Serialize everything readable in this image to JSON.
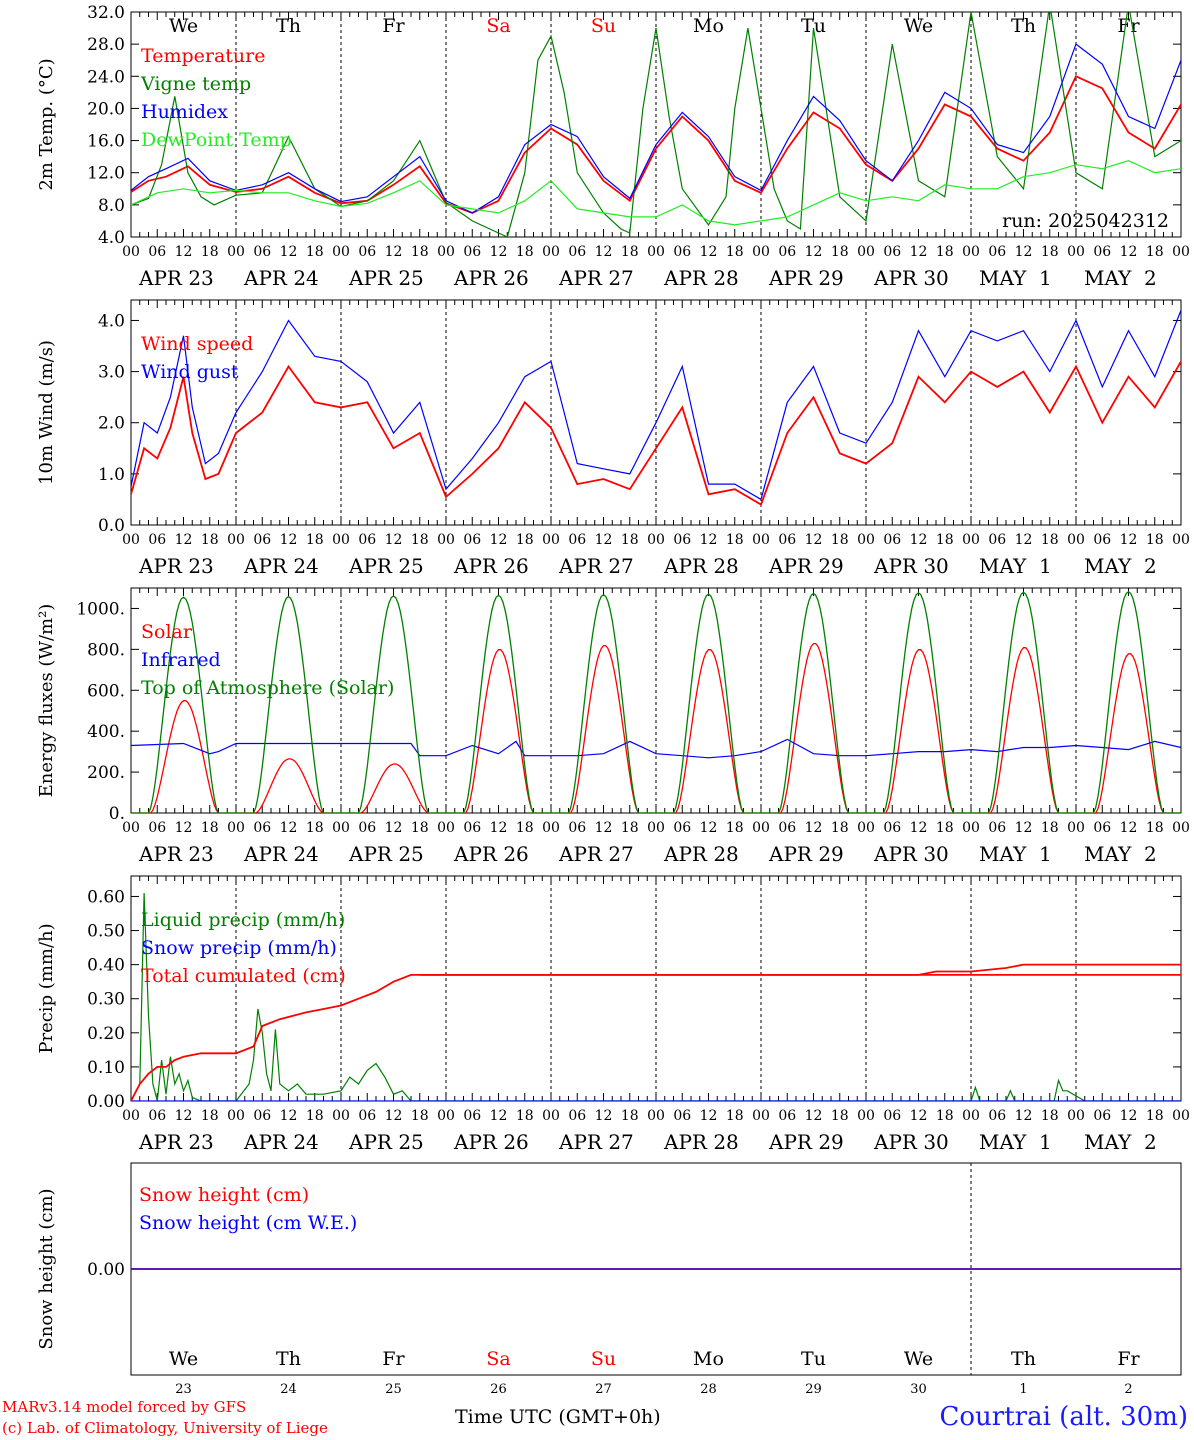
{
  "run_label": "run: 2025042312",
  "dates": [
    "APR 23",
    "APR 24",
    "APR 25",
    "APR 26",
    "APR 27",
    "APR 28",
    "APR 29",
    "APR 30",
    "MAY  1",
    "MAY  2"
  ],
  "weekdays": [
    "We",
    "Th",
    "Fr",
    "Sa",
    "Su",
    "Mo",
    "Tu",
    "We",
    "Th",
    "Fr"
  ],
  "weekend_days": [
    "Sa",
    "Su"
  ],
  "day_numbers": [
    "23",
    "24",
    "25",
    "26",
    "27",
    "28",
    "29",
    "30",
    "1",
    "2"
  ],
  "hour_ticks": [
    "00",
    "06",
    "12",
    "18"
  ],
  "final_hour_tick": "00",
  "footer": {
    "model": "MARv3.14 model forced by GFS",
    "lab": "(c) Lab. of Climatology, University of Liege",
    "time_label": "Time UTC (GMT+0h)",
    "location": "Courtrai (alt. 30m)"
  },
  "colors": {
    "red": "#ff0000",
    "green": "#008000",
    "blue": "#0000ff",
    "light_green": "#22ee22",
    "grid": "#000000"
  },
  "chart_data": [
    {
      "type": "line",
      "ylabel": "2m Temp. (°C)",
      "ylim": [
        4,
        32
      ],
      "yticks": [
        "4.0",
        "8.0",
        "12.0",
        "16.0",
        "20.0",
        "24.0",
        "28.0",
        "32.0"
      ],
      "x_unit": "hours since APR 23 00 UTC",
      "series": [
        {
          "name": "Temperature",
          "color": "red",
          "x": [
            0,
            4,
            8,
            13,
            18,
            24,
            30,
            36,
            42,
            48,
            54,
            60,
            66,
            72,
            78,
            84,
            90,
            96,
            102,
            108,
            114,
            120,
            126,
            132,
            138,
            144,
            150,
            156,
            162,
            168,
            174,
            180,
            186,
            192,
            198,
            204,
            210,
            216,
            222,
            228,
            234,
            240
          ],
          "y": [
            9.6,
            11,
            11.5,
            12.8,
            10.5,
            9.6,
            10,
            11.5,
            9.5,
            8.2,
            8.5,
            10.5,
            12.8,
            8.2,
            7,
            8.5,
            14.5,
            17.5,
            15.5,
            11,
            8.5,
            15,
            19,
            16,
            11,
            9.5,
            15,
            19.5,
            17.5,
            13,
            11,
            15,
            20.5,
            19,
            15,
            13.5,
            17,
            24,
            22.5,
            17,
            15,
            20.5
          ]
        },
        {
          "name": "Vigne temp",
          "color": "green",
          "x": [
            0,
            4,
            7,
            10,
            13,
            16,
            19,
            24,
            30,
            36,
            42,
            48,
            54,
            60,
            66,
            72,
            78,
            82,
            86,
            90,
            93,
            96,
            99,
            102,
            108,
            112,
            114,
            117,
            120,
            123,
            126,
            132,
            136,
            138,
            141,
            144,
            147,
            150,
            153,
            156,
            162,
            166,
            168,
            174,
            180,
            186,
            192,
            198,
            204,
            210,
            216,
            222,
            228,
            234,
            240
          ],
          "y": [
            8,
            8.8,
            13,
            21.5,
            12,
            9,
            8,
            9.2,
            9.5,
            16.5,
            10,
            7.8,
            8.5,
            11,
            16,
            8.3,
            6,
            5,
            4,
            12,
            26,
            29,
            22,
            12,
            7,
            5,
            4.5,
            20,
            30,
            19,
            10,
            5.5,
            9,
            20,
            30,
            20,
            10,
            6,
            5,
            30,
            9,
            7,
            6,
            28,
            11,
            9,
            32,
            14,
            10,
            33,
            12,
            10,
            33,
            14,
            16
          ]
        },
        {
          "name": "Humidex",
          "color": "blue",
          "x": [
            0,
            4,
            8,
            13,
            18,
            24,
            30,
            36,
            42,
            48,
            54,
            60,
            66,
            72,
            78,
            84,
            90,
            96,
            102,
            108,
            114,
            120,
            126,
            132,
            138,
            144,
            150,
            156,
            162,
            168,
            174,
            180,
            186,
            192,
            198,
            204,
            210,
            216,
            222,
            228,
            234,
            240
          ],
          "y": [
            9.8,
            11.5,
            12.5,
            13.8,
            11,
            9.8,
            10.5,
            12,
            10,
            8.4,
            9,
            11.5,
            14,
            8.5,
            7,
            9,
            15.5,
            18,
            16.5,
            11.5,
            8.8,
            15.5,
            19.5,
            16.5,
            11.5,
            9.8,
            16,
            21.5,
            18.5,
            13.5,
            11,
            16,
            22,
            20,
            15.5,
            14.5,
            19,
            28,
            25.5,
            19,
            17.5,
            26
          ]
        },
        {
          "name": "DewPoint Temp",
          "color": "light_green",
          "x": [
            0,
            6,
            12,
            18,
            24,
            30,
            36,
            42,
            48,
            54,
            60,
            66,
            72,
            78,
            84,
            90,
            96,
            102,
            108,
            114,
            120,
            126,
            132,
            138,
            144,
            150,
            156,
            162,
            168,
            174,
            180,
            186,
            192,
            198,
            204,
            210,
            216,
            222,
            228,
            234,
            240
          ],
          "y": [
            8,
            9.5,
            10,
            9.5,
            9.8,
            9.5,
            9.5,
            8.5,
            7.8,
            8.2,
            9.5,
            11,
            8,
            7.5,
            7,
            8.5,
            11,
            7.5,
            7,
            6.5,
            6.5,
            8,
            6,
            5.5,
            6,
            6.5,
            8,
            9.5,
            8.5,
            9,
            8.5,
            10.5,
            10,
            10,
            11.5,
            12,
            13,
            12.5,
            13.5,
            12,
            12.5
          ]
        }
      ]
    },
    {
      "type": "line",
      "ylabel": "10m Wind (m/s)",
      "ylim": [
        0,
        4.4
      ],
      "yticks": [
        "0.0",
        "1.0",
        "2.0",
        "3.0",
        "4.0"
      ],
      "x_unit": "hours since APR 23 00 UTC",
      "series": [
        {
          "name": "Wind speed",
          "color": "red",
          "x": [
            0,
            3,
            6,
            9,
            12,
            14,
            17,
            20,
            24,
            30,
            36,
            42,
            48,
            54,
            60,
            66,
            72,
            78,
            84,
            90,
            96,
            102,
            108,
            114,
            120,
            126,
            132,
            138,
            144,
            150,
            156,
            162,
            168,
            174,
            180,
            186,
            192,
            198,
            204,
            210,
            216,
            222,
            228,
            234,
            240
          ],
          "y": [
            0.6,
            1.5,
            1.3,
            1.9,
            2.9,
            1.8,
            0.9,
            1.0,
            1.8,
            2.2,
            3.1,
            2.4,
            2.3,
            2.4,
            1.5,
            1.8,
            0.55,
            1.0,
            1.5,
            2.4,
            1.9,
            0.8,
            0.9,
            0.7,
            1.5,
            2.3,
            0.6,
            0.7,
            0.4,
            1.8,
            2.5,
            1.4,
            1.2,
            1.6,
            2.9,
            2.4,
            3.0,
            2.7,
            3.0,
            2.2,
            3.1,
            2.0,
            2.9,
            2.3,
            3.2
          ]
        },
        {
          "name": "Wind gust",
          "color": "blue",
          "x": [
            0,
            3,
            6,
            9,
            12,
            14,
            17,
            20,
            24,
            30,
            36,
            42,
            48,
            54,
            60,
            66,
            72,
            78,
            84,
            90,
            96,
            102,
            108,
            114,
            120,
            126,
            132,
            138,
            144,
            150,
            156,
            162,
            168,
            174,
            180,
            186,
            192,
            198,
            204,
            210,
            216,
            222,
            228,
            234,
            240
          ],
          "y": [
            0.75,
            2.0,
            1.8,
            2.5,
            3.7,
            2.3,
            1.2,
            1.4,
            2.2,
            3.0,
            4.0,
            3.3,
            3.2,
            2.8,
            1.8,
            2.4,
            0.7,
            1.3,
            2.0,
            2.9,
            3.2,
            1.2,
            1.1,
            1.0,
            2.0,
            3.1,
            0.8,
            0.8,
            0.5,
            2.4,
            3.1,
            1.8,
            1.6,
            2.4,
            3.8,
            2.9,
            3.8,
            3.6,
            3.8,
            3.0,
            4.0,
            2.7,
            3.8,
            2.9,
            4.2
          ]
        }
      ]
    },
    {
      "type": "line",
      "ylabel": "Energy fluxes (W/m²)",
      "ylim": [
        0,
        1100
      ],
      "yticks": [
        "0.",
        "200.",
        "400.",
        "600.",
        "800.",
        "1000."
      ],
      "x_unit": "hours since APR 23 00 UTC",
      "series": [
        {
          "name": "Solar",
          "color": "red",
          "day_peaks": [
            550,
            265,
            240,
            800,
            820,
            800,
            830,
            800,
            810,
            780
          ],
          "sunrise": 4.5,
          "sunset": 20.0
        },
        {
          "name": "Infrared",
          "color": "blue",
          "x": [
            0,
            12,
            18,
            20,
            24,
            48,
            64,
            66,
            72,
            78,
            84,
            88,
            90,
            96,
            102,
            108,
            114,
            120,
            126,
            132,
            138,
            144,
            150,
            156,
            162,
            168,
            174,
            180,
            186,
            192,
            198,
            204,
            210,
            216,
            222,
            228,
            234,
            240
          ],
          "y": [
            330,
            340,
            290,
            300,
            340,
            340,
            340,
            280,
            280,
            330,
            290,
            350,
            280,
            280,
            280,
            290,
            350,
            290,
            280,
            270,
            280,
            300,
            360,
            290,
            280,
            280,
            290,
            300,
            300,
            310,
            300,
            320,
            320,
            330,
            320,
            310,
            350,
            320
          ]
        },
        {
          "name": "Top of Atmosphere (Solar)",
          "color": "green",
          "day_peaks": [
            1055,
            1058,
            1061,
            1064,
            1067,
            1070,
            1073,
            1076,
            1079,
            1082
          ],
          "sunrise": 4.0,
          "sunset": 20.0
        }
      ]
    },
    {
      "type": "line",
      "ylabel": "Precip (mm/h)",
      "ylim": [
        0,
        0.66
      ],
      "yticks": [
        "0.00",
        "0.10",
        "0.20",
        "0.30",
        "0.40",
        "0.50",
        "0.60"
      ],
      "x_unit": "hours since APR 23 00 UTC",
      "series": [
        {
          "name": "Liquid precip (mm/h)",
          "color": "green",
          "x": [
            0,
            2,
            3,
            4,
            5,
            6,
            7,
            8,
            9,
            10,
            11,
            12,
            13,
            14,
            16,
            18,
            24,
            27,
            28,
            29,
            30,
            31,
            32,
            33,
            34,
            36,
            38,
            40,
            44,
            48,
            50,
            52,
            54,
            56,
            58,
            60,
            62,
            64,
            70,
            96,
            192,
            193,
            194,
            200,
            201,
            202,
            211,
            212,
            213,
            214,
            218,
            240
          ],
          "y": [
            0,
            0.05,
            0.61,
            0.25,
            0.05,
            0,
            0.12,
            0.02,
            0.13,
            0.05,
            0.08,
            0.03,
            0.06,
            0.01,
            0,
            0,
            0,
            0.05,
            0.12,
            0.27,
            0.2,
            0.08,
            0.03,
            0.21,
            0.05,
            0.03,
            0.05,
            0.02,
            0.02,
            0.03,
            0.07,
            0.05,
            0.09,
            0.11,
            0.07,
            0.02,
            0.03,
            0,
            0,
            0,
            0,
            0.04,
            0,
            0,
            0.03,
            0,
            0,
            0.06,
            0.03,
            0.03,
            0,
            0
          ]
        },
        {
          "name": "Snow precip (mm/h)",
          "color": "blue",
          "x": [
            0,
            240
          ],
          "y": [
            0,
            0
          ]
        },
        {
          "name": "Total cumulated (cm)",
          "color": "red",
          "x": [
            0,
            2,
            4,
            6,
            8,
            10,
            12,
            16,
            20,
            24,
            28,
            30,
            34,
            40,
            44,
            48,
            52,
            56,
            60,
            64,
            66,
            240
          ],
          "y": [
            0,
            0.05,
            0.08,
            0.1,
            0.1,
            0.12,
            0.13,
            0.14,
            0.14,
            0.14,
            0.16,
            0.22,
            0.24,
            0.26,
            0.27,
            0.28,
            0.3,
            0.32,
            0.35,
            0.37,
            0.37,
            0.37
          ],
          "x2": [
            66,
            180,
            184,
            192,
            200,
            204,
            240
          ],
          "y2": [
            0.37,
            0.37,
            0.38,
            0.38,
            0.39,
            0.4,
            0.4
          ]
        }
      ]
    },
    {
      "type": "line",
      "ylabel": "Snow height (cm)",
      "ylim": [
        -1,
        1
      ],
      "yticks": [
        "0.00"
      ],
      "x_unit": "hours since APR 23 00 UTC",
      "series": [
        {
          "name": "Snow height (cm)",
          "color": "red",
          "x": [
            0,
            240
          ],
          "y": [
            0,
            0
          ]
        },
        {
          "name": "Snow height (cm W.E.)",
          "color": "blue",
          "x": [
            0,
            240
          ],
          "y": [
            0,
            0
          ]
        }
      ]
    }
  ]
}
